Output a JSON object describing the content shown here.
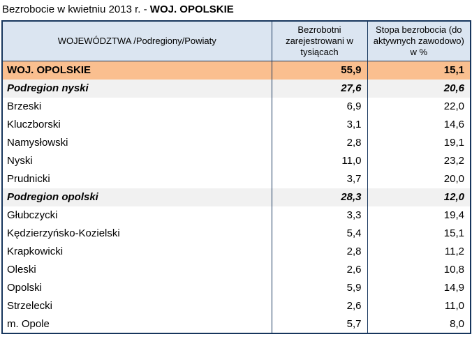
{
  "title": {
    "prefix": "Bezrobocie w kwietniu 2013 r. - ",
    "highlight": "WOJ. OPOLSKIE"
  },
  "colors": {
    "border": "#17365D",
    "header_bg": "#DBE5F1",
    "voivodeship_bg": "#FABF8F",
    "subregion_bg": "#F1F1F1"
  },
  "table": {
    "columns": [
      "WOJEWÓDZTWA /Podregiony/Powiaty",
      "Bezrobotni zarejestrowani w tysiącach",
      "Stopa bezrobocia (do aktywnych zawodowo) w %"
    ],
    "rows": [
      {
        "name": "WOJ. OPOLSKIE",
        "unemployed": "55,9",
        "rate": "15,1",
        "style": "voivodeship"
      },
      {
        "name": "Podregion nyski",
        "unemployed": "27,6",
        "rate": "20,6",
        "style": "subregion"
      },
      {
        "name": "Brzeski",
        "unemployed": "6,9",
        "rate": "22,0",
        "style": "county"
      },
      {
        "name": "Kluczborski",
        "unemployed": "3,1",
        "rate": "14,6",
        "style": "county"
      },
      {
        "name": "Namysłowski",
        "unemployed": "2,8",
        "rate": "19,1",
        "style": "county"
      },
      {
        "name": "Nyski",
        "unemployed": "11,0",
        "rate": "23,2",
        "style": "county"
      },
      {
        "name": "Prudnicki",
        "unemployed": "3,7",
        "rate": "20,0",
        "style": "county"
      },
      {
        "name": "Podregion opolski",
        "unemployed": "28,3",
        "rate": "12,0",
        "style": "subregion"
      },
      {
        "name": "Głubczycki",
        "unemployed": "3,3",
        "rate": "19,4",
        "style": "county"
      },
      {
        "name": "Kędzierzyńsko-Kozielski",
        "unemployed": "5,4",
        "rate": "15,1",
        "style": "county"
      },
      {
        "name": "Krapkowicki",
        "unemployed": "2,8",
        "rate": "11,2",
        "style": "county"
      },
      {
        "name": "Oleski",
        "unemployed": "2,6",
        "rate": "10,8",
        "style": "county"
      },
      {
        "name": "Opolski",
        "unemployed": "5,9",
        "rate": "14,9",
        "style": "county"
      },
      {
        "name": "Strzelecki",
        "unemployed": "2,6",
        "rate": "11,0",
        "style": "county"
      },
      {
        "name": "m. Opole",
        "unemployed": "5,7",
        "rate": "8,0",
        "style": "county"
      }
    ]
  }
}
